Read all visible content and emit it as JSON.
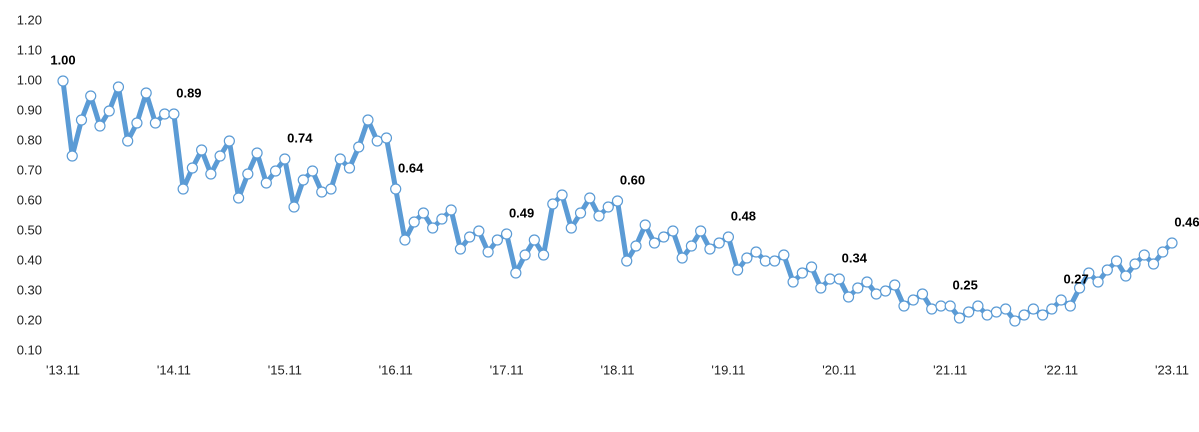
{
  "chart_data": {
    "type": "line",
    "color": "#5b9bd5",
    "categories": [
      "'13.11",
      null,
      null,
      null,
      null,
      null,
      null,
      null,
      null,
      null,
      null,
      null,
      "'14.11",
      null,
      null,
      null,
      null,
      null,
      null,
      null,
      null,
      null,
      null,
      null,
      "'15.11",
      null,
      null,
      null,
      null,
      null,
      null,
      null,
      null,
      null,
      null,
      null,
      "'16.11",
      null,
      null,
      null,
      null,
      null,
      null,
      null,
      null,
      null,
      null,
      null,
      "'17.11",
      null,
      null,
      null,
      null,
      null,
      null,
      null,
      null,
      null,
      null,
      null,
      "'18.11",
      null,
      null,
      null,
      null,
      null,
      null,
      null,
      null,
      null,
      null,
      null,
      "'19.11",
      null,
      null,
      null,
      null,
      null,
      null,
      null,
      null,
      null,
      null,
      null,
      "'20.11",
      null,
      null,
      null,
      null,
      null,
      null,
      null,
      null,
      null,
      null,
      null,
      "'21.11",
      null,
      null,
      null,
      null,
      null,
      null,
      null,
      null,
      null,
      null,
      null,
      "'22.11",
      null,
      null,
      null,
      null,
      null,
      null,
      null,
      null,
      null,
      null,
      null,
      "'23.11"
    ],
    "values": [
      1.0,
      0.75,
      0.87,
      0.95,
      0.85,
      0.9,
      0.98,
      0.8,
      0.86,
      0.96,
      0.86,
      0.89,
      0.89,
      0.64,
      0.71,
      0.77,
      0.69,
      0.75,
      0.8,
      0.61,
      0.69,
      0.76,
      0.66,
      0.7,
      0.74,
      0.58,
      0.67,
      0.7,
      0.63,
      0.64,
      0.74,
      0.71,
      0.78,
      0.87,
      0.8,
      0.81,
      0.64,
      0.47,
      0.53,
      0.56,
      0.51,
      0.54,
      0.57,
      0.44,
      0.48,
      0.5,
      0.43,
      0.47,
      0.49,
      0.36,
      0.42,
      0.47,
      0.42,
      0.59,
      0.62,
      0.51,
      0.56,
      0.61,
      0.55,
      0.58,
      0.6,
      0.4,
      0.45,
      0.52,
      0.46,
      0.48,
      0.5,
      0.41,
      0.45,
      0.5,
      0.44,
      0.46,
      0.48,
      0.37,
      0.41,
      0.43,
      0.4,
      0.4,
      0.42,
      0.33,
      0.36,
      0.38,
      0.31,
      0.34,
      0.34,
      0.28,
      0.31,
      0.33,
      0.29,
      0.3,
      0.32,
      0.25,
      0.27,
      0.29,
      0.24,
      0.25,
      0.25,
      0.21,
      0.23,
      0.25,
      0.22,
      0.23,
      0.24,
      0.2,
      0.22,
      0.24,
      0.22,
      0.24,
      0.27,
      0.25,
      0.31,
      0.36,
      0.33,
      0.37,
      0.4,
      0.35,
      0.39,
      0.42,
      0.39,
      0.43,
      0.46
    ],
    "value_labels": [
      "1.00",
      null,
      null,
      null,
      null,
      null,
      null,
      null,
      null,
      null,
      null,
      null,
      "0.89",
      null,
      null,
      null,
      null,
      null,
      null,
      null,
      null,
      null,
      null,
      null,
      "0.74",
      null,
      null,
      null,
      null,
      null,
      null,
      null,
      null,
      null,
      null,
      null,
      "0.64",
      null,
      null,
      null,
      null,
      null,
      null,
      null,
      null,
      null,
      null,
      null,
      "0.49",
      null,
      null,
      null,
      null,
      null,
      null,
      null,
      null,
      null,
      null,
      null,
      "0.60",
      null,
      null,
      null,
      null,
      null,
      null,
      null,
      null,
      null,
      null,
      null,
      "0.48",
      null,
      null,
      null,
      null,
      null,
      null,
      null,
      null,
      null,
      null,
      null,
      "0.34",
      null,
      null,
      null,
      null,
      null,
      null,
      null,
      null,
      null,
      null,
      null,
      "0.25",
      null,
      null,
      null,
      null,
      null,
      null,
      null,
      null,
      null,
      null,
      null,
      "0.27",
      null,
      null,
      null,
      null,
      null,
      null,
      null,
      null,
      null,
      null,
      null,
      "0.46"
    ],
    "ylim": [
      0.1,
      1.2
    ],
    "yticks": [
      {
        "value": 0.1,
        "label": "0.10"
      },
      {
        "value": 0.2,
        "label": "0.20"
      },
      {
        "value": 0.3,
        "label": "0.30"
      },
      {
        "value": 0.4,
        "label": "0.40"
      },
      {
        "value": 0.5,
        "label": "0.50"
      },
      {
        "value": 0.6,
        "label": "0.60"
      },
      {
        "value": 0.7,
        "label": "0.70"
      },
      {
        "value": 0.8,
        "label": "0.80"
      },
      {
        "value": 0.9,
        "label": "0.90"
      },
      {
        "value": 1.0,
        "label": "1.00"
      },
      {
        "value": 1.1,
        "label": "1.10"
      },
      {
        "value": 1.2,
        "label": "1.20"
      }
    ],
    "grid": false
  }
}
